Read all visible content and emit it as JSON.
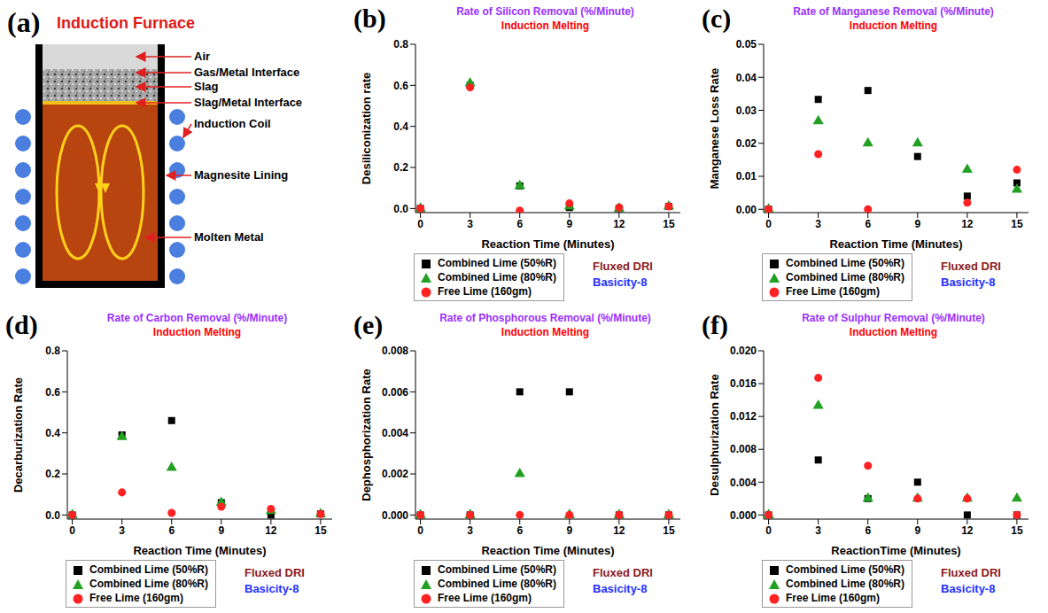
{
  "diagram": {
    "panel_label": "(a)",
    "title": "Induction Furnace",
    "labels": [
      "Air",
      "Gas/Metal Interface",
      "Slag",
      "Slag/Metal Interface",
      "Induction Coil",
      "Magnesite Lining",
      "Molten Metal"
    ]
  },
  "chart_data": [
    {
      "type": "scatter",
      "panel_label": "(b)",
      "title": "Rate of Silicon Removal (%/Minute)",
      "subtitle": "Induction Melting",
      "annotations": [
        "Fluxed DRI",
        "Basicity-8"
      ],
      "x_label": "Reaction Time (Minutes)",
      "y_label": "Desiliconization rate",
      "x": [
        0,
        3,
        6,
        9,
        12,
        15
      ],
      "xlim": [
        -0.3,
        15.7
      ],
      "xticks": [
        0,
        3,
        6,
        9,
        12,
        15
      ],
      "ylim": [
        -0.02,
        0.8
      ],
      "yticks": [
        {
          "value": 0,
          "label": "0.0"
        },
        0.2,
        0.4,
        0.6,
        0.8
      ],
      "grid": false,
      "legend": "bottom",
      "series": [
        {
          "name": "Combined Lime (50%R)",
          "color": "#000000",
          "marker": "square",
          "values": [
            0,
            0.6,
            0.11,
            0.005,
            0,
            0.01
          ]
        },
        {
          "name": "Combined Lime (80%R)",
          "color": "#22a022",
          "marker": "triangle",
          "values": [
            0,
            0.61,
            0.11,
            0.01,
            0,
            0.01
          ]
        },
        {
          "name": "Free Lime (160gm)",
          "color": "#ff2222",
          "marker": "circle",
          "values": [
            0,
            0.59,
            -0.01,
            0.025,
            0.005,
            0.01
          ]
        }
      ]
    },
    {
      "type": "scatter",
      "panel_label": "(c)",
      "title": "Rate of Manganese Removal (%/Minute)",
      "subtitle": "Induction Melting",
      "annotations": [
        "Fluxed DRI",
        "Basicity-8"
      ],
      "x_label": "Reaction Time (Minutes)",
      "y_label": "Manganese Loss Rate",
      "x": [
        0,
        3,
        6,
        9,
        12,
        15
      ],
      "xlim": [
        -0.3,
        15.7
      ],
      "xticks": [
        0,
        3,
        6,
        9,
        12,
        15
      ],
      "ylim": [
        -0.001,
        0.05
      ],
      "yticks": [
        {
          "value": 0,
          "label": "0.00"
        },
        0.01,
        0.02,
        0.03,
        0.04,
        0.05
      ],
      "grid": false,
      "legend": "bottom",
      "series": [
        {
          "name": "Combined Lime (50%R)",
          "color": "#000000",
          "marker": "square",
          "values": [
            0,
            0.0333,
            0.036,
            0.016,
            0.004,
            0.008
          ]
        },
        {
          "name": "Combined Lime (80%R)",
          "color": "#22a022",
          "marker": "triangle",
          "values": [
            0,
            0.0267,
            0.02,
            0.02,
            0.012,
            0.006
          ]
        },
        {
          "name": "Free Lime (160gm)",
          "color": "#ff2222",
          "marker": "circle",
          "values": [
            0,
            0.0167,
            0,
            null,
            0.002,
            0.012
          ]
        }
      ]
    },
    {
      "type": "scatter",
      "panel_label": "(d)",
      "title": "Rate of Carbon Removal (%/Minute)",
      "subtitle": "Induction Melting",
      "annotations": [
        "Fluxed DRI",
        "Basicity-8"
      ],
      "x_label": "Reaction Time (Minutes)",
      "y_label": "Decarburization Rate",
      "x": [
        0,
        3,
        6,
        9,
        12,
        15
      ],
      "xlim": [
        -0.3,
        15.7
      ],
      "xticks": [
        0,
        3,
        6,
        9,
        12,
        15
      ],
      "ylim": [
        -0.02,
        0.8
      ],
      "yticks": [
        {
          "value": 0,
          "label": "0.0"
        },
        0.2,
        0.4,
        0.6,
        0.8
      ],
      "grid": false,
      "legend": "bottom",
      "series": [
        {
          "name": "Combined Lime (50%R)",
          "color": "#000000",
          "marker": "square",
          "values": [
            0,
            0.39,
            0.46,
            0.06,
            0,
            0.005
          ]
        },
        {
          "name": "Combined Lime (80%R)",
          "color": "#22a022",
          "marker": "triangle",
          "values": [
            0,
            0.38,
            0.23,
            0.06,
            0.02,
            0.005
          ]
        },
        {
          "name": "Free Lime (160gm)",
          "color": "#ff2222",
          "marker": "circle",
          "values": [
            0,
            0.11,
            0.01,
            0.04,
            0.03,
            0.005
          ]
        }
      ]
    },
    {
      "type": "scatter",
      "panel_label": "(e)",
      "title": "Rate of Phosphorous Removal (%/Minute)",
      "subtitle": "Induction Melting",
      "annotations": [
        "Fluxed DRI",
        "Basicity-8"
      ],
      "x_label": "Reaction Time (Minutes)",
      "y_label": "Dephosphorization Rate",
      "x": [
        0,
        3,
        6,
        9,
        12,
        15
      ],
      "xlim": [
        -0.3,
        15.7
      ],
      "xticks": [
        0,
        3,
        6,
        9,
        12,
        15
      ],
      "ylim": [
        -0.0002,
        0.008
      ],
      "yticks": [
        {
          "value": 0,
          "label": "0.000"
        },
        0.002,
        0.004,
        0.006,
        0.008
      ],
      "grid": false,
      "legend": "bottom",
      "series": [
        {
          "name": "Combined Lime (50%R)",
          "color": "#000000",
          "marker": "square",
          "values": [
            0,
            0,
            0.006,
            0.006,
            0,
            0
          ]
        },
        {
          "name": "Combined Lime (80%R)",
          "color": "#22a022",
          "marker": "triangle",
          "values": [
            0,
            0,
            0.002,
            0,
            0,
            0
          ]
        },
        {
          "name": "Free Lime (160gm)",
          "color": "#ff2222",
          "marker": "circle",
          "values": [
            0,
            0,
            0,
            0,
            0,
            0
          ]
        }
      ]
    },
    {
      "type": "scatter",
      "panel_label": "(f)",
      "title": "Rate of Sulphur Removal (%/Minute)",
      "subtitle": "Induction Melting",
      "annotations": [
        "Fluxed DRI",
        "Basicity-8"
      ],
      "x_label": "ReactionTime (Minutes)",
      "y_label": "Desulphurization Rate",
      "x": [
        0,
        3,
        6,
        9,
        12,
        15
      ],
      "xlim": [
        -0.3,
        15.7
      ],
      "xticks": [
        0,
        3,
        6,
        9,
        12,
        15
      ],
      "ylim": [
        -0.0005,
        0.02
      ],
      "yticks": [
        {
          "value": 0,
          "label": "0.000"
        },
        0.004,
        0.008,
        0.012,
        0.016,
        {
          "value": 0.02,
          "label": "0.020"
        }
      ],
      "grid": false,
      "legend": "bottom",
      "series": [
        {
          "name": "Combined Lime (50%R)",
          "color": "#000000",
          "marker": "square",
          "values": [
            0,
            0.0067,
            0.002,
            0.004,
            0,
            0
          ]
        },
        {
          "name": "Combined Lime (80%R)",
          "color": "#22a022",
          "marker": "triangle",
          "values": [
            0,
            0.0133,
            0.002,
            0.002,
            0.002,
            0.002
          ]
        },
        {
          "name": "Free Lime (160gm)",
          "color": "#ff2222",
          "marker": "circle",
          "values": [
            0,
            0.0167,
            0.006,
            0.002,
            0.002,
            0
          ]
        }
      ]
    }
  ]
}
